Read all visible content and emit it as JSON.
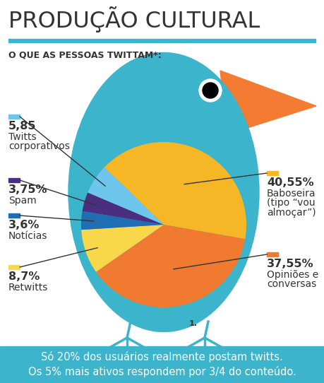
{
  "chart_data": {
    "type": "pie",
    "title": "PRODUÇÃO CULTURAL",
    "subtitle": "O QUE AS PESSOAS TWITTAM*:",
    "categories": [
      "Baboseira (tipo “vou almoçar”)",
      "Opiniões e conversas",
      "Retwitts",
      "Notícias",
      "Spam",
      "Twitts corporativos"
    ],
    "values": [
      40.55,
      37.55,
      8.7,
      3.6,
      3.75,
      5.85
    ],
    "value_labels": [
      "40,55%",
      "37,55%",
      "8,7%",
      "3,6%",
      "3,75%",
      "5,85"
    ],
    "colors": [
      "#f6b726",
      "#f07b30",
      "#f8d84a",
      "#1f6db3",
      "#4b2f7f",
      "#6ec6ec"
    ],
    "data_labels": true,
    "annotation": "1.",
    "notes": [
      "Só 20% dos usuários realmente postam twitts.",
      "Os 5% mais ativos respondem por 3/4 do conteúdo."
    ]
  }
}
